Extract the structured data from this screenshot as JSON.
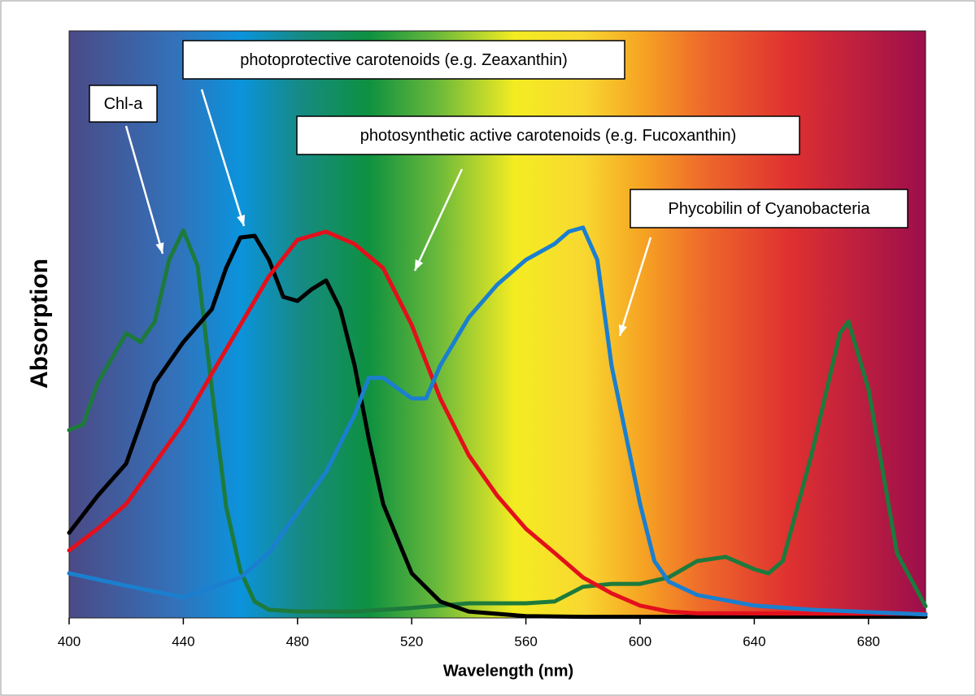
{
  "chart_data": {
    "type": "line",
    "x_label": "Wavelength (nm)",
    "y_label": "Absorption",
    "xlim": [
      400,
      700
    ],
    "ylim": [
      0,
      1
    ],
    "xticks": [
      400,
      440,
      480,
      520,
      560,
      600,
      640,
      680
    ],
    "series": [
      {
        "name": "Chl-a",
        "color": "#1d7a3c",
        "x": [
          400,
          405,
          410,
          420,
          425,
          430,
          435,
          440,
          445,
          450,
          455,
          460,
          465,
          470,
          480,
          500,
          520,
          540,
          560,
          570,
          580,
          590,
          600,
          610,
          620,
          630,
          640,
          645,
          650,
          660,
          670,
          673,
          680,
          690,
          700
        ],
        "values": [
          0.32,
          0.33,
          0.4,
          0.485,
          0.47,
          0.505,
          0.61,
          0.66,
          0.6,
          0.39,
          0.19,
          0.08,
          0.028,
          0.014,
          0.011,
          0.011,
          0.017,
          0.025,
          0.025,
          0.028,
          0.053,
          0.058,
          0.058,
          0.069,
          0.097,
          0.104,
          0.083,
          0.076,
          0.097,
          0.277,
          0.485,
          0.505,
          0.39,
          0.11,
          0.02
        ]
      },
      {
        "name": "photoprotective carotenoids (e.g. Zeaxanthin)",
        "color": "#000000",
        "x": [
          400,
          410,
          420,
          430,
          440,
          450,
          455,
          460,
          465,
          470,
          475,
          480,
          485,
          490,
          495,
          500,
          505,
          510,
          520,
          530,
          540,
          560,
          580,
          600,
          700
        ],
        "values": [
          0.145,
          0.208,
          0.263,
          0.4,
          0.47,
          0.526,
          0.596,
          0.648,
          0.651,
          0.61,
          0.547,
          0.54,
          0.56,
          0.575,
          0.526,
          0.43,
          0.305,
          0.194,
          0.076,
          0.028,
          0.011,
          0.003,
          0.002,
          0.002,
          0.002
        ]
      },
      {
        "name": "photosynthetic active carotenoids (e.g. Fucoxanthin)",
        "color": "#e3101c",
        "x": [
          400,
          410,
          420,
          430,
          440,
          450,
          460,
          470,
          480,
          490,
          500,
          510,
          520,
          530,
          540,
          550,
          560,
          570,
          580,
          590,
          600,
          610,
          620,
          700
        ],
        "values": [
          0.115,
          0.152,
          0.194,
          0.263,
          0.332,
          0.416,
          0.499,
          0.582,
          0.644,
          0.658,
          0.637,
          0.596,
          0.499,
          0.374,
          0.277,
          0.208,
          0.152,
          0.111,
          0.069,
          0.042,
          0.021,
          0.011,
          0.008,
          0.007
        ]
      },
      {
        "name": "Phycobilin of Cyanobacteria",
        "color": "#1b7fcf",
        "x": [
          400,
          420,
          440,
          460,
          470,
          480,
          490,
          500,
          505,
          510,
          520,
          525,
          530,
          540,
          550,
          560,
          570,
          575,
          580,
          585,
          590,
          600,
          605,
          610,
          620,
          640,
          660,
          700
        ],
        "values": [
          0.076,
          0.055,
          0.035,
          0.069,
          0.111,
          0.18,
          0.249,
          0.346,
          0.409,
          0.409,
          0.374,
          0.374,
          0.43,
          0.512,
          0.568,
          0.61,
          0.637,
          0.658,
          0.665,
          0.61,
          0.43,
          0.194,
          0.097,
          0.062,
          0.039,
          0.021,
          0.014,
          0.006
        ]
      }
    ]
  }
}
